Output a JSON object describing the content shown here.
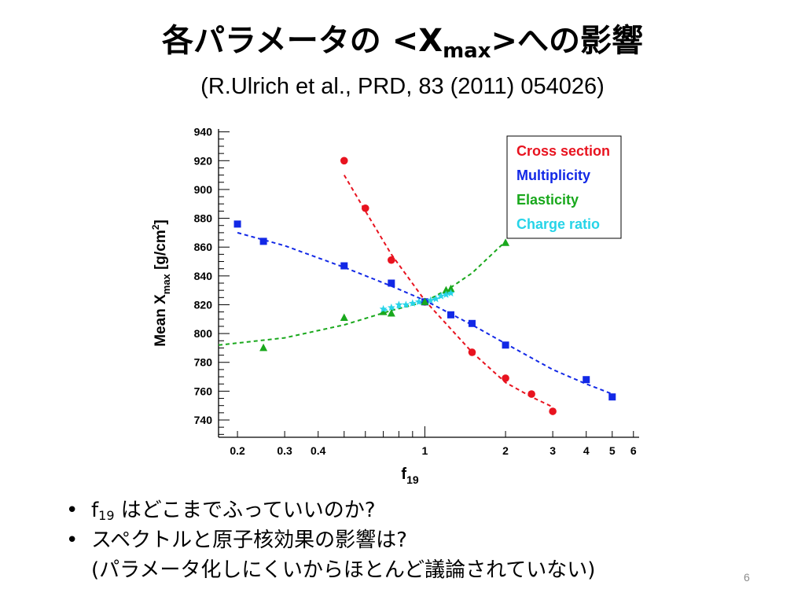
{
  "slide": {
    "title_main": "各パラメータの <X",
    "title_sub": "max",
    "title_tail": ">への影響",
    "subtitle": "(R.Ulrich et al., PRD, 83 (2011) 054026)",
    "page_number": "6"
  },
  "bullets": [
    {
      "marker": "•",
      "prefix": "f",
      "sub": "19",
      "text": " はどこまでふっていいのか?"
    },
    {
      "marker": "•",
      "prefix": "",
      "sub": "",
      "text": "スペクトルと原子核効果の影響は?"
    },
    {
      "marker": "",
      "prefix": "",
      "sub": "",
      "text": "(パラメータ化しにくいからほとんど議論されていない)"
    }
  ],
  "chart_data": {
    "type": "scatter",
    "xscale": "log",
    "xlim": [
      0.17,
      6.3
    ],
    "ylim": [
      728,
      942
    ],
    "yticks": [
      740,
      760,
      780,
      800,
      820,
      840,
      860,
      880,
      900,
      920,
      940
    ],
    "xticks": [
      0.2,
      0.3,
      0.4,
      1,
      2,
      3,
      4,
      5,
      6
    ],
    "xlabel_main": "f",
    "xlabel_sub": "19",
    "ylabel_main": "Mean X",
    "ylabel_sub": "max",
    "ylabel_units": "[g/cm",
    "ylabel_sup": "2",
    "ylabel_close": "]",
    "legend_position": "top-right",
    "series": [
      {
        "name": "Cross section",
        "color": "#e8131f",
        "marker": "circle",
        "x": [
          0.5,
          0.6,
          0.75,
          1.0,
          1.5,
          2.0,
          2.5,
          3.0
        ],
        "y": [
          920,
          887,
          851,
          822,
          787,
          769,
          758,
          746
        ],
        "curve": [
          [
            0.5,
            910
          ],
          [
            0.6,
            885
          ],
          [
            0.75,
            855
          ],
          [
            1.0,
            823
          ],
          [
            1.5,
            787
          ],
          [
            2.0,
            766
          ],
          [
            2.5,
            756
          ],
          [
            3.0,
            749
          ]
        ]
      },
      {
        "name": "Multiplicity",
        "color": "#1228e6",
        "marker": "square",
        "x": [
          0.2,
          0.25,
          0.5,
          0.75,
          1.0,
          1.25,
          1.5,
          2.0,
          4.0,
          5.0
        ],
        "y": [
          876,
          864,
          847,
          835,
          822,
          813,
          807,
          792,
          768,
          756
        ],
        "curve": [
          [
            0.2,
            870
          ],
          [
            0.3,
            861
          ],
          [
            0.5,
            846
          ],
          [
            0.75,
            833
          ],
          [
            1.0,
            823
          ],
          [
            1.5,
            806
          ],
          [
            2.0,
            793
          ],
          [
            3.0,
            775
          ],
          [
            4.0,
            765
          ],
          [
            5.0,
            758
          ]
        ]
      },
      {
        "name": "Elasticity",
        "color": "#19a81c",
        "marker": "triangle",
        "x": [
          0.25,
          0.5,
          0.7,
          0.75,
          1.0,
          1.2,
          1.25,
          2.0
        ],
        "y": [
          790,
          811,
          815,
          814,
          822,
          830,
          831,
          863
        ],
        "curve": [
          [
            0.17,
            792
          ],
          [
            0.3,
            797
          ],
          [
            0.5,
            806
          ],
          [
            0.75,
            816
          ],
          [
            1.0,
            822
          ],
          [
            1.25,
            832
          ],
          [
            1.5,
            842
          ],
          [
            2.0,
            864
          ]
        ]
      },
      {
        "name": "Charge ratio",
        "color": "#27d4e8",
        "marker": "star",
        "x": [
          0.7,
          0.75,
          0.8,
          0.85,
          0.9,
          0.95,
          1.05,
          1.1,
          1.15,
          1.2,
          1.25
        ],
        "y": [
          817,
          818,
          820,
          820,
          821,
          822,
          823,
          824,
          826,
          827,
          828
        ],
        "curve": [
          [
            0.7,
            816
          ],
          [
            0.85,
            819
          ],
          [
            1.0,
            822
          ],
          [
            1.1,
            824
          ],
          [
            1.25,
            828
          ]
        ]
      }
    ]
  }
}
